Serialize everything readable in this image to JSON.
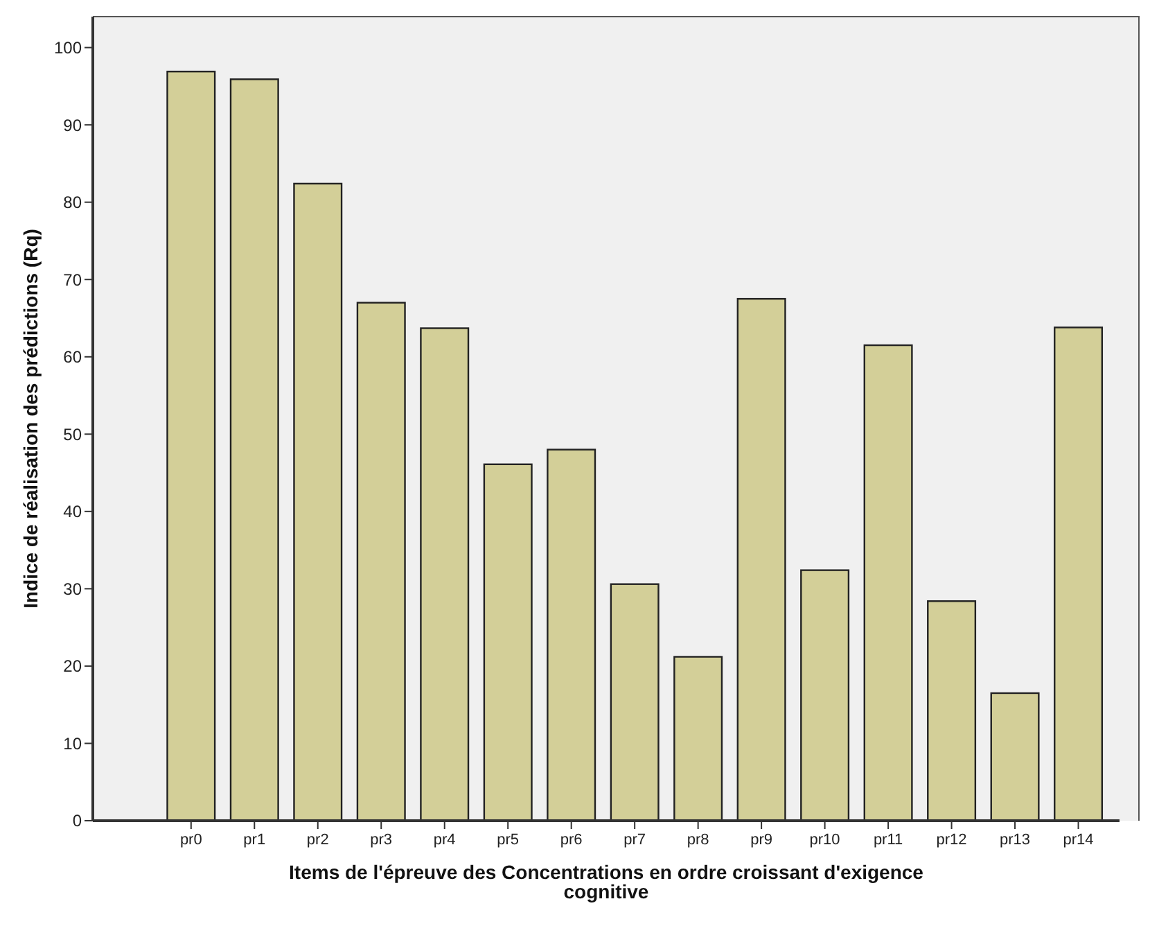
{
  "chart_data": {
    "type": "bar",
    "xlabel": "Items de l'épreuve des Concentrations en ordre croissant d'exigence cognitive",
    "ylabel": "Indice de réalisation des prédictions (Rq)",
    "categories": [
      "pr0",
      "pr1",
      "pr2",
      "pr3",
      "pr4",
      "pr5",
      "pr6",
      "pr7",
      "pr8",
      "pr9",
      "pr10",
      "pr11",
      "pr12",
      "pr13",
      "pr14"
    ],
    "values": [
      96.9,
      95.9,
      82.4,
      67.0,
      63.7,
      46.1,
      48.0,
      30.6,
      21.2,
      67.5,
      32.4,
      61.5,
      28.4,
      16.5,
      63.8
    ],
    "color": "#d3cf98",
    "ylim": [
      0,
      104
    ],
    "yticks": [
      0,
      10,
      20,
      30,
      40,
      50,
      60,
      70,
      80,
      90,
      100
    ],
    "grid": false
  }
}
